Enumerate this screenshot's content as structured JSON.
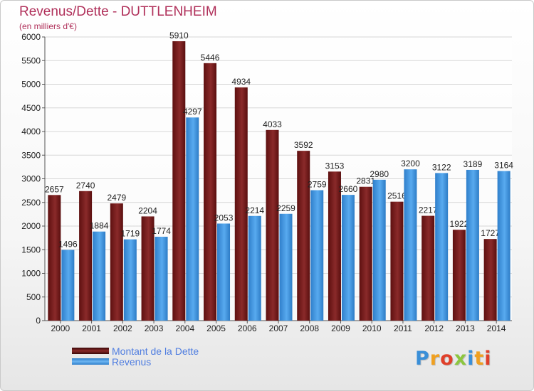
{
  "title": "Revenus/Dette - DUTTLENHEIM",
  "subtitle": "(en milliers d'€)",
  "logo": {
    "letters": [
      "P",
      "r",
      "o",
      "x",
      "i",
      "t",
      "i"
    ],
    "colors": [
      "#3a8fd8",
      "#f0a020",
      "#e0402a",
      "#8cc63f",
      "#3a8fd8",
      "#f0a020",
      "#e0402a"
    ]
  },
  "colors": {
    "dette": "#7a1c1c",
    "revenus": "#3f95e0",
    "title": "#b0305a",
    "legend_text": "#4f7de0"
  },
  "chart_data": {
    "type": "bar",
    "title": "Revenus/Dette - DUTTLENHEIM",
    "ylabel": "(en milliers d'€)",
    "categories": [
      "2000",
      "2001",
      "2002",
      "2003",
      "2004",
      "2005",
      "2006",
      "2007",
      "2008",
      "2009",
      "2010",
      "2011",
      "2012",
      "2013",
      "2014"
    ],
    "series": [
      {
        "name": "Montant de la Dette",
        "values": [
          2657,
          2740,
          2479,
          2204,
          5910,
          5446,
          4934,
          4033,
          3592,
          3153,
          2831,
          2516,
          2217,
          1922,
          1727
        ],
        "labels": [
          "2657",
          "2740",
          "2479",
          "2204",
          "5910",
          "5446",
          "4934",
          "4033",
          "3592",
          "3153",
          "2831",
          "2516",
          "2217",
          "1922",
          "1727"
        ]
      },
      {
        "name": "Revenus",
        "values": [
          1496,
          1884,
          1719,
          1774,
          4297,
          2053,
          2214,
          2259,
          2759,
          2660,
          2980,
          3200,
          3122,
          3189,
          3164
        ],
        "labels": [
          "1496",
          "1884",
          "1719",
          "1774",
          "4297",
          "2053",
          "2214",
          "2259",
          "2759",
          "2660",
          "2980",
          "3200",
          "3122",
          "3189",
          "3164"
        ]
      }
    ],
    "ylim": [
      0,
      6000
    ],
    "yticks": [
      0,
      500,
      1000,
      1500,
      2000,
      2500,
      3000,
      3500,
      4000,
      4500,
      5000,
      5500,
      6000
    ],
    "grid": true,
    "legend": "bottom-left"
  }
}
